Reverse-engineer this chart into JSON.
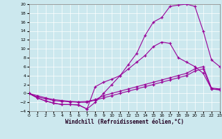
{
  "xlabel": "Windchill (Refroidissement éolien,°C)",
  "bg_color": "#cce8ee",
  "grid_color": "#b0d8e0",
  "line_color": "#990099",
  "xlim": [
    0,
    23
  ],
  "ylim": [
    -4,
    20
  ],
  "xtick_labels": [
    "0",
    "1",
    "2",
    "3",
    "4",
    "5",
    "6",
    "7",
    "8",
    "9",
    "10",
    "11",
    "12",
    "13",
    "14",
    "15",
    "16",
    "17",
    "18",
    "19",
    "20",
    "21",
    "22",
    "23"
  ],
  "yticks": [
    -4,
    -2,
    0,
    2,
    4,
    6,
    8,
    10,
    12,
    14,
    16,
    18,
    20
  ],
  "line1_x": [
    0,
    1,
    2,
    3,
    4,
    5,
    6,
    7,
    8,
    9,
    10,
    11,
    12,
    13,
    14,
    15,
    16,
    17,
    18,
    19,
    20,
    21,
    22,
    23
  ],
  "line1_y": [
    0,
    -1,
    -1.7,
    -2.2,
    -2.5,
    -2.5,
    -2.6,
    -3.5,
    -2.0,
    0.0,
    2.0,
    4.0,
    6.5,
    9.0,
    13.0,
    16.0,
    17.0,
    19.5,
    19.8,
    20.0,
    19.5,
    14.0,
    7.5,
    6.0
  ],
  "line2_x": [
    0,
    1,
    2,
    3,
    4,
    5,
    6,
    7,
    8,
    9,
    10,
    11,
    12,
    13,
    14,
    15,
    16,
    17,
    18,
    19,
    20,
    21,
    22,
    23
  ],
  "line2_y": [
    0,
    -1,
    -1.7,
    -2.2,
    -2.5,
    -2.5,
    -2.6,
    -3.5,
    1.5,
    2.5,
    3.2,
    4.0,
    5.5,
    7.0,
    8.5,
    10.5,
    11.5,
    11.2,
    8.0,
    7.0,
    6.0,
    4.5,
    1.0,
    0.8
  ],
  "line3_x": [
    0,
    1,
    2,
    3,
    4,
    5,
    6,
    7,
    8,
    9,
    10,
    11,
    12,
    13,
    14,
    15,
    16,
    17,
    18,
    19,
    20,
    21,
    22,
    23
  ],
  "line3_y": [
    0,
    -0.8,
    -1.2,
    -1.6,
    -1.8,
    -1.9,
    -2.0,
    -2.0,
    -1.5,
    -1.0,
    -0.5,
    0.0,
    0.5,
    1.0,
    1.5,
    2.0,
    2.5,
    3.0,
    3.5,
    4.0,
    5.0,
    5.5,
    1.0,
    0.8
  ],
  "line4_x": [
    0,
    1,
    2,
    3,
    4,
    5,
    6,
    7,
    8,
    9,
    10,
    11,
    12,
    13,
    14,
    15,
    16,
    17,
    18,
    19,
    20,
    21,
    22,
    23
  ],
  "line4_y": [
    0,
    -0.5,
    -1.0,
    -1.4,
    -1.6,
    -1.8,
    -1.9,
    -1.8,
    -1.4,
    -0.5,
    0.0,
    0.5,
    1.0,
    1.5,
    2.0,
    2.5,
    3.0,
    3.5,
    4.0,
    4.5,
    5.5,
    6.0,
    1.2,
    1.0
  ]
}
